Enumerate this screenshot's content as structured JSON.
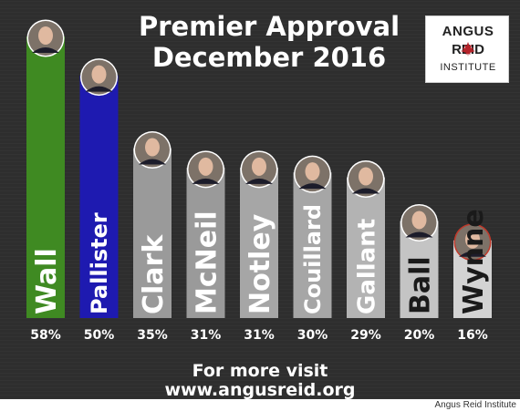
{
  "header": {
    "title_line1": "Premier Approval",
    "title_line2": "December 2016"
  },
  "logo": {
    "line1": "ANGUS",
    "line2": "REID",
    "line3": "INSTITUTE",
    "leaf_color": "#b5232a"
  },
  "footer": {
    "line1": "For more visit",
    "line2": "www.angusreid.org"
  },
  "credit": "Angus Reid Institute",
  "colors": {
    "background": "#2e2e2e",
    "wall": "#3f8a22",
    "pallister": "#1e1ab0",
    "grey_1": "#9a9a9a",
    "grey_2": "#a6a6a6",
    "grey_3": "#b3b3b3",
    "grey_4": "#c4c4c4",
    "grey_5": "#d3d3d3"
  },
  "chart_data": {
    "type": "bar",
    "title": "Premier Approval December 2016",
    "categories": [
      "Wall",
      "Pallister",
      "Clark",
      "McNeil",
      "Notley",
      "Couillard",
      "Gallant",
      "Ball",
      "Wynne"
    ],
    "values": [
      58,
      50,
      35,
      31,
      31,
      30,
      29,
      20,
      16
    ],
    "value_labels": [
      "58%",
      "50%",
      "35%",
      "31%",
      "31%",
      "30%",
      "29%",
      "20%",
      "16%"
    ],
    "unit": "%",
    "ylim": [
      0,
      58
    ],
    "grid": false,
    "legend": "none",
    "bar_colors": [
      "#3f8a22",
      "#1e1ab0",
      "#9a9a9a",
      "#9a9a9a",
      "#a6a6a6",
      "#a6a6a6",
      "#b3b3b3",
      "#c4c4c4",
      "#d3d3d3"
    ],
    "label_colors": [
      "#ffffff",
      "#ffffff",
      "#ffffff",
      "#ffffff",
      "#ffffff",
      "#ffffff",
      "#ffffff",
      "#1a1a1a",
      "#1a1a1a"
    ],
    "photo_ring": [
      "#ffffff",
      "#ffffff",
      "#ffffff",
      "#ffffff",
      "#ffffff",
      "#ffffff",
      "#ffffff",
      "#ffffff",
      "#c0392b"
    ]
  }
}
